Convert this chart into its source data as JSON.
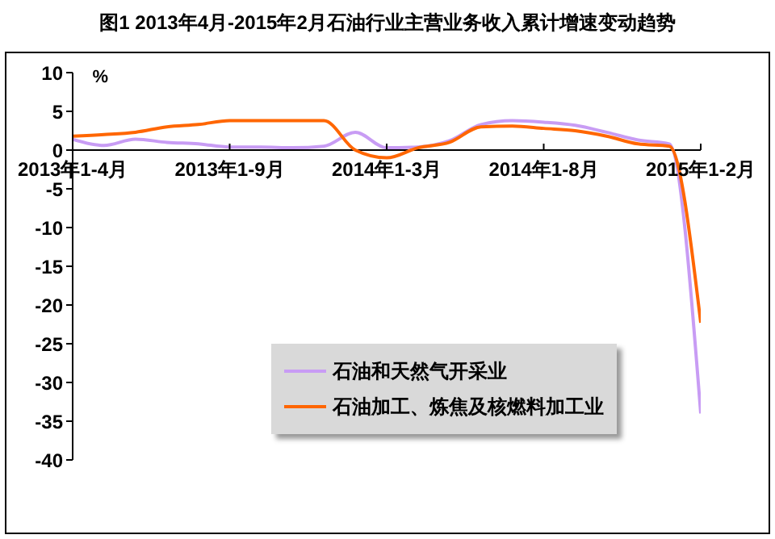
{
  "chart_data": {
    "type": "line",
    "title": "图1  2013年4月-2015年2月石油行业主营业务收入累计增速变动趋势",
    "ylabel": "%",
    "categories": [
      "2013年1-4月",
      null,
      null,
      null,
      null,
      "2013年1-9月",
      null,
      null,
      null,
      null,
      "2014年1-3月",
      null,
      null,
      null,
      null,
      "2014年1-8月",
      null,
      null,
      null,
      null,
      "2015年1-2月"
    ],
    "series": [
      {
        "name": "石油和天然气开采业",
        "color": "#c89cf4",
        "values": [
          1.4,
          0.6,
          1.4,
          1.0,
          0.8,
          0.4,
          0.4,
          0.3,
          0.5,
          2.3,
          0.3,
          0.4,
          1.2,
          3.3,
          3.8,
          3.6,
          3.2,
          2.3,
          1.3,
          0.8,
          -34
        ]
      },
      {
        "name": "石油加工、炼焦及核燃料加工业",
        "color": "#ff6600",
        "values": [
          1.8,
          2.0,
          2.3,
          3.0,
          3.3,
          3.8,
          3.8,
          3.8,
          3.8,
          0.0,
          -1.0,
          0.3,
          1.0,
          3.0,
          3.1,
          2.8,
          2.5,
          1.8,
          0.8,
          0.5,
          -22.3
        ]
      }
    ],
    "ylim": [
      -40,
      10
    ],
    "yticks": [
      10,
      5,
      0,
      -5,
      -10,
      -15,
      -20,
      -25,
      -30,
      -35,
      -40
    ],
    "legend": "bottom"
  }
}
